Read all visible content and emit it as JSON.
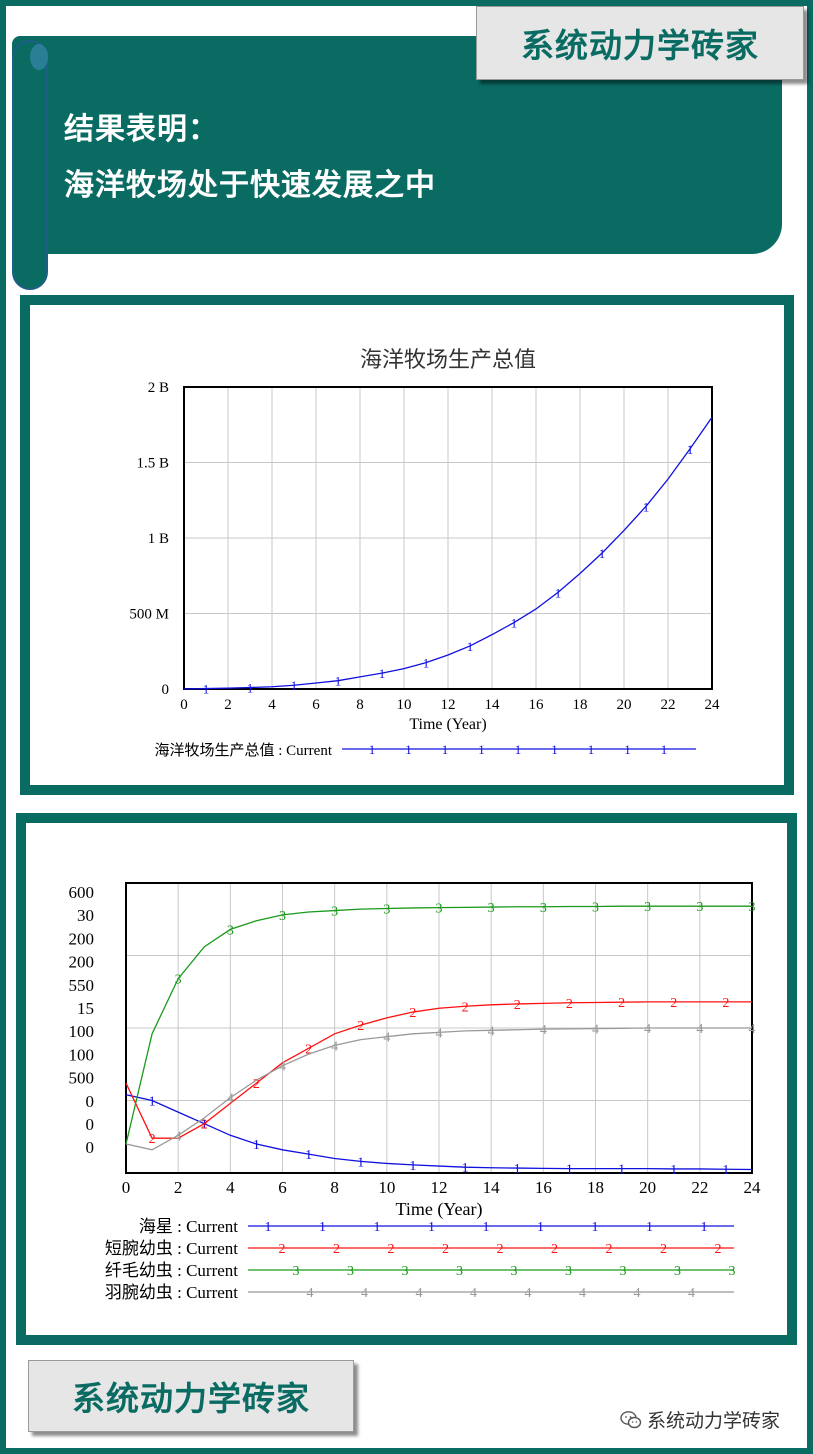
{
  "header": {
    "logo_text": "系统动力学砖家",
    "headline_line1": "结果表明：",
    "headline_line2": "海洋牧场处于快速发展之中"
  },
  "footer": {
    "logo_text": "系统动力学砖家",
    "wechat_text": "系统动力学砖家",
    "wechat_icon": "wechat-icon"
  },
  "colors": {
    "theme": "#0a6b63",
    "series_1": "#1010e0",
    "series_2": "#ff1010",
    "series_3": "#1a9a1a",
    "series_4": "#999999"
  },
  "chart_data": [
    {
      "type": "line",
      "title": "海洋牧场生产总值",
      "xlabel": "Time (Year)",
      "ylabel": "",
      "xlim": [
        0,
        24
      ],
      "ylim": [
        0,
        2000000000
      ],
      "x_ticks": [
        "0",
        "2",
        "4",
        "6",
        "8",
        "10",
        "12",
        "14",
        "16",
        "18",
        "20",
        "22",
        "24"
      ],
      "y_ticks": [
        "0",
        "500 M",
        "1 B",
        "1.5 B",
        "2 B"
      ],
      "grid": true,
      "legend_position": "bottom",
      "series": [
        {
          "name": "海洋牧场生产总值 : Current",
          "marker": "1",
          "color": "#1010e0",
          "x": [
            0,
            1,
            2,
            3,
            4,
            5,
            6,
            7,
            8,
            9,
            10,
            11,
            12,
            13,
            14,
            15,
            16,
            17,
            18,
            19,
            20,
            21,
            22,
            23,
            24
          ],
          "values": [
            0,
            3000000,
            6000000,
            10000000,
            15000000,
            25000000,
            40000000,
            55000000,
            80000000,
            105000000,
            135000000,
            175000000,
            225000000,
            285000000,
            360000000,
            440000000,
            530000000,
            640000000,
            765000000,
            900000000,
            1050000000,
            1210000000,
            1390000000,
            1590000000,
            1800000000
          ]
        }
      ]
    },
    {
      "type": "line",
      "title": "",
      "xlabel": "Time (Year)",
      "xlim": [
        0,
        24
      ],
      "x_ticks": [
        "0",
        "2",
        "4",
        "6",
        "8",
        "10",
        "12",
        "14",
        "16",
        "18",
        "20",
        "22",
        "24"
      ],
      "y_axis_labels": [
        "600",
        "30",
        "200",
        "200",
        "550",
        "15",
        "100",
        "100",
        "500",
        "0",
        "0",
        "0"
      ],
      "grid": true,
      "legend_position": "bottom",
      "series": [
        {
          "name": "海星 : Current",
          "marker": "1",
          "color": "#1010e0",
          "x": [
            0,
            1,
            2,
            3,
            4,
            5,
            6,
            7,
            8,
            9,
            10,
            11,
            12,
            13,
            14,
            15,
            16,
            17,
            18,
            19,
            20,
            21,
            22,
            23,
            24
          ],
          "values": [
            0.27,
            0.25,
            0.21,
            0.17,
            0.13,
            0.1,
            0.08,
            0.065,
            0.05,
            0.04,
            0.033,
            0.028,
            0.024,
            0.02,
            0.018,
            0.017,
            0.016,
            0.015,
            0.015,
            0.015,
            0.015,
            0.014,
            0.014,
            0.013,
            0.012
          ]
        },
        {
          "name": "短腕幼虫 : Current",
          "marker": "2",
          "color": "#ff1010",
          "x": [
            0,
            1,
            2,
            3,
            4,
            5,
            6,
            7,
            8,
            9,
            10,
            11,
            12,
            13,
            14,
            15,
            16,
            17,
            18,
            19,
            20,
            21,
            22,
            23,
            24
          ],
          "values": [
            0.31,
            0.12,
            0.12,
            0.17,
            0.24,
            0.31,
            0.38,
            0.43,
            0.48,
            0.51,
            0.535,
            0.555,
            0.568,
            0.575,
            0.58,
            0.583,
            0.585,
            0.587,
            0.588,
            0.589,
            0.59,
            0.59,
            0.59,
            0.59,
            0.59
          ]
        },
        {
          "name": "纤毛幼虫 : Current",
          "marker": "3",
          "color": "#1a9a1a",
          "x": [
            0,
            1,
            2,
            3,
            4,
            5,
            6,
            7,
            8,
            9,
            10,
            11,
            12,
            13,
            14,
            15,
            16,
            17,
            18,
            19,
            20,
            21,
            22,
            23,
            24
          ],
          "values": [
            0.1,
            0.48,
            0.67,
            0.78,
            0.84,
            0.87,
            0.89,
            0.9,
            0.905,
            0.91,
            0.912,
            0.914,
            0.915,
            0.916,
            0.917,
            0.918,
            0.918,
            0.919,
            0.919,
            0.92,
            0.92,
            0.92,
            0.92,
            0.92,
            0.92
          ]
        },
        {
          "name": "羽腕幼虫 : Current",
          "marker": "4",
          "color": "#999999",
          "x": [
            0,
            1,
            2,
            3,
            4,
            5,
            6,
            7,
            8,
            9,
            10,
            11,
            12,
            13,
            14,
            15,
            16,
            17,
            18,
            19,
            20,
            21,
            22,
            23,
            24
          ],
          "values": [
            0.1,
            0.08,
            0.13,
            0.19,
            0.26,
            0.32,
            0.37,
            0.41,
            0.44,
            0.46,
            0.47,
            0.48,
            0.485,
            0.49,
            0.492,
            0.494,
            0.496,
            0.497,
            0.498,
            0.499,
            0.5,
            0.5,
            0.5,
            0.5,
            0.5
          ]
        }
      ]
    }
  ]
}
